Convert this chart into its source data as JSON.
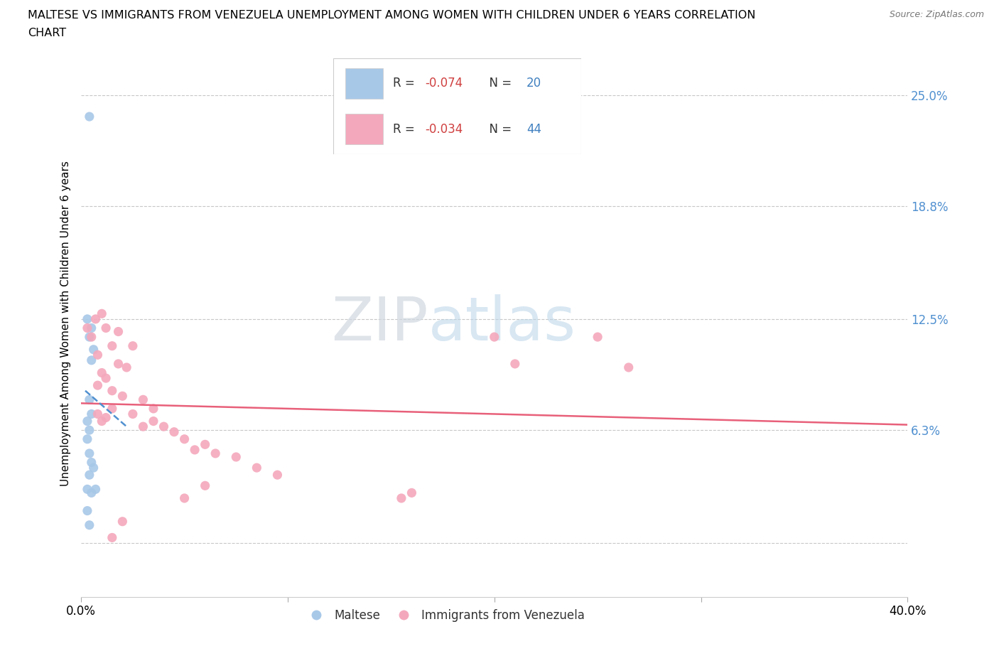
{
  "title_line1": "MALTESE VS IMMIGRANTS FROM VENEZUELA UNEMPLOYMENT AMONG WOMEN WITH CHILDREN UNDER 6 YEARS CORRELATION",
  "title_line2": "CHART",
  "source": "Source: ZipAtlas.com",
  "ylabel": "Unemployment Among Women with Children Under 6 years",
  "xlim": [
    0.0,
    0.4
  ],
  "ylim": [
    -0.03,
    0.275
  ],
  "yticks": [
    0.0,
    0.063,
    0.125,
    0.188,
    0.25
  ],
  "ytick_labels": [
    "",
    "6.3%",
    "12.5%",
    "18.8%",
    "25.0%"
  ],
  "xticks": [
    0.0,
    0.1,
    0.2,
    0.3,
    0.4
  ],
  "xtick_labels": [
    "0.0%",
    "",
    "",
    "",
    "40.0%"
  ],
  "blue_R": -0.074,
  "blue_N": 20,
  "pink_R": -0.034,
  "pink_N": 44,
  "blue_color": "#a8c8e8",
  "pink_color": "#f4a8bc",
  "blue_line_color": "#5090d0",
  "pink_line_color": "#e8607a",
  "blue_R_color": "#e05050",
  "pink_R_color": "#e05050",
  "blue_N_color": "#4080c0",
  "pink_N_color": "#4080c0",
  "legend_label_blue": "Maltese",
  "legend_label_pink": "Immigrants from Venezuela",
  "watermark_zip": "ZIP",
  "watermark_atlas": "atlas",
  "background_color": "#ffffff",
  "grid_color": "#c8c8c8",
  "blue_x": [
    0.004,
    0.003,
    0.004,
    0.005,
    0.006,
    0.005,
    0.004,
    0.003,
    0.004,
    0.005,
    0.003,
    0.004,
    0.005,
    0.006,
    0.004,
    0.003,
    0.005,
    0.007,
    0.004,
    0.003
  ],
  "blue_y": [
    0.238,
    0.125,
    0.115,
    0.12,
    0.108,
    0.102,
    0.08,
    0.068,
    0.063,
    0.072,
    0.058,
    0.05,
    0.045,
    0.042,
    0.038,
    0.03,
    0.028,
    0.03,
    0.01,
    0.018
  ],
  "pink_x": [
    0.003,
    0.005,
    0.007,
    0.01,
    0.012,
    0.008,
    0.015,
    0.018,
    0.01,
    0.008,
    0.012,
    0.015,
    0.02,
    0.025,
    0.018,
    0.022,
    0.015,
    0.012,
    0.01,
    0.008,
    0.03,
    0.025,
    0.035,
    0.03,
    0.04,
    0.035,
    0.05,
    0.045,
    0.06,
    0.055,
    0.065,
    0.075,
    0.085,
    0.095,
    0.06,
    0.05,
    0.2,
    0.25,
    0.21,
    0.265,
    0.16,
    0.155,
    0.02,
    0.015
  ],
  "pink_y": [
    0.12,
    0.115,
    0.125,
    0.128,
    0.12,
    0.105,
    0.11,
    0.118,
    0.095,
    0.088,
    0.092,
    0.085,
    0.082,
    0.11,
    0.1,
    0.098,
    0.075,
    0.07,
    0.068,
    0.072,
    0.08,
    0.072,
    0.075,
    0.065,
    0.065,
    0.068,
    0.058,
    0.062,
    0.055,
    0.052,
    0.05,
    0.048,
    0.042,
    0.038,
    0.032,
    0.025,
    0.115,
    0.115,
    0.1,
    0.098,
    0.028,
    0.025,
    0.012,
    0.003
  ],
  "pink_line_x_start": 0.0,
  "pink_line_x_end": 0.4,
  "pink_line_y_start": 0.078,
  "pink_line_y_end": 0.066,
  "blue_line_x_start": 0.002,
  "blue_line_x_end": 0.022,
  "blue_line_y_start": 0.085,
  "blue_line_y_end": 0.065
}
